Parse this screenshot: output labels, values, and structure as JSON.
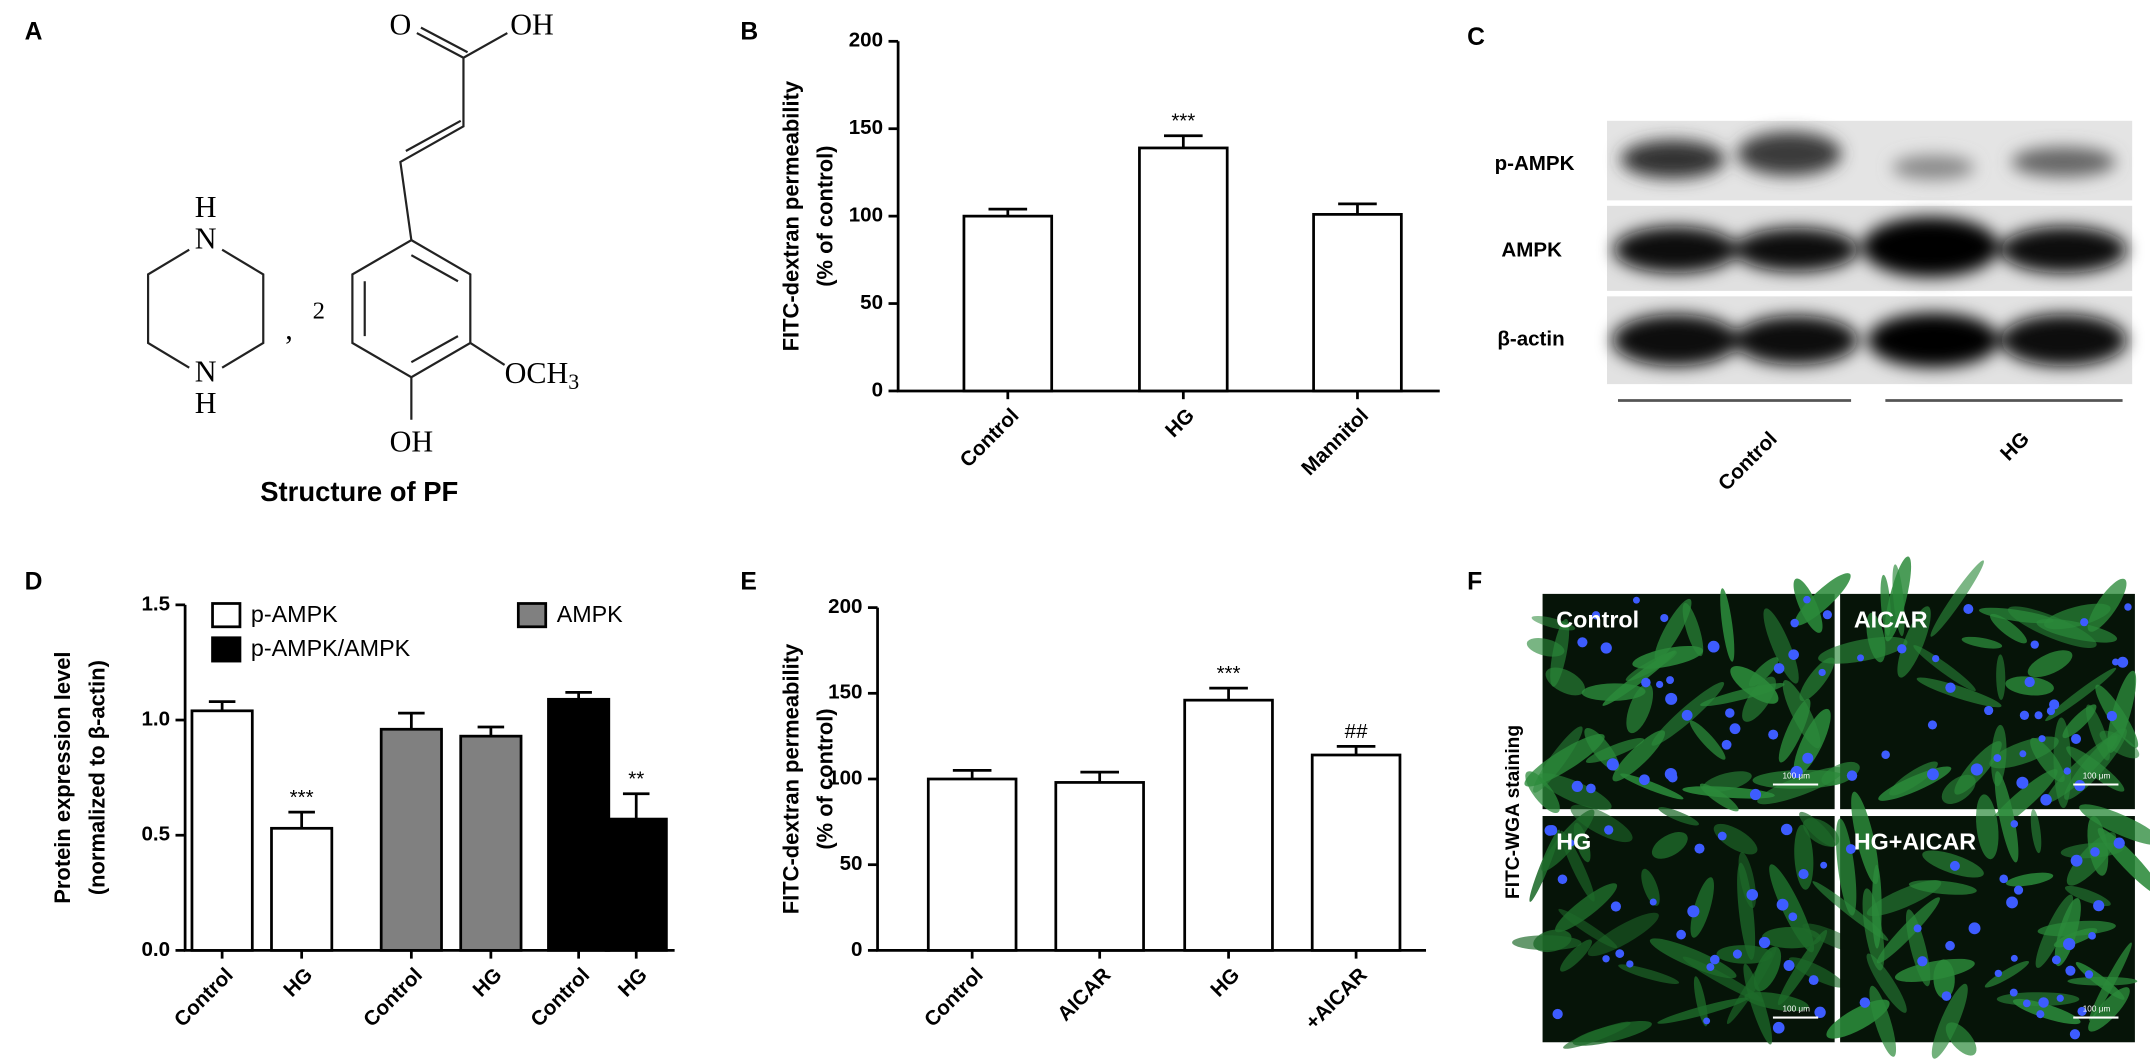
{
  "panel_labels": [
    "A",
    "B",
    "C",
    "D",
    "E",
    "F"
  ],
  "structure": {
    "carbonyl_o": "O",
    "acid_oh": "OH",
    "nh_top": "H",
    "n_top": "N",
    "n_bottom": "N",
    "nh_bottom": "H",
    "comma": ",",
    "multiplier": "2",
    "methoxy": [
      "OCH",
      "3"
    ],
    "hydroxyl": "OH",
    "caption": "Structure of PF"
  },
  "blot": {
    "rows": [
      "p-AMPK",
      "AMPK",
      "β-actin"
    ],
    "groups": [
      "Control",
      "HG"
    ]
  },
  "images": {
    "panels": [
      "Control",
      "AICAR",
      "HG",
      "HG+AICAR"
    ],
    "scale_bar": "100 μm",
    "y_label": "FITC-WGA staining"
  },
  "chart_data": [
    {
      "type": "bar",
      "y_label": [
        "FITC-dextran permeability",
        "(% of control)"
      ],
      "categories": [
        "Control",
        "HG",
        "Mannitol"
      ],
      "values": [
        100,
        139,
        101
      ],
      "errors": [
        4,
        7,
        6
      ],
      "annotations": [
        null,
        "***",
        null
      ],
      "color": "#ffffff",
      "ylim": [
        0,
        200
      ],
      "yticks": [
        0,
        50,
        100,
        150,
        200
      ]
    },
    {
      "type": "grouped_bar",
      "y_label": [
        "Protein expression level",
        "(normalized to β-actin)"
      ],
      "categories": [
        "Control",
        "HG",
        "Control",
        "HG",
        "Control",
        "HG"
      ],
      "series": [
        {
          "name": "p-AMPK",
          "color": "#ffffff",
          "values": [
            1.04,
            0.53,
            null,
            null,
            null,
            null
          ],
          "errors": [
            0.04,
            0.07,
            null,
            null,
            null,
            null
          ]
        },
        {
          "name": "AMPK",
          "color": "#808080",
          "values": [
            null,
            null,
            0.96,
            0.93,
            null,
            null
          ],
          "errors": [
            null,
            null,
            0.07,
            0.04,
            null,
            null
          ]
        },
        {
          "name": "p-AMPK/AMPK",
          "color": "#000000",
          "values": [
            null,
            null,
            null,
            null,
            1.09,
            0.57
          ],
          "errors": [
            null,
            null,
            null,
            null,
            0.03,
            0.11
          ]
        }
      ],
      "annotations": [
        null,
        "***",
        null,
        null,
        null,
        "**"
      ],
      "ylim": [
        0,
        1.5
      ],
      "yticks": [
        {
          "value": 0,
          "label": "0.0"
        },
        0.5,
        {
          "value": 1,
          "label": "1.0"
        },
        1.5
      ]
    },
    {
      "type": "bar",
      "y_label": [
        "FITC-dextran permeability",
        "(% of control)"
      ],
      "categories": [
        "Control",
        "AICAR",
        "HG",
        "+AICAR"
      ],
      "values": [
        100,
        98,
        146,
        114
      ],
      "errors": [
        5,
        6,
        7,
        5
      ],
      "annotations": [
        null,
        null,
        "***",
        "##"
      ],
      "color": "#ffffff",
      "ylim": [
        0,
        200
      ],
      "yticks": [
        0,
        50,
        100,
        150,
        200
      ]
    }
  ]
}
